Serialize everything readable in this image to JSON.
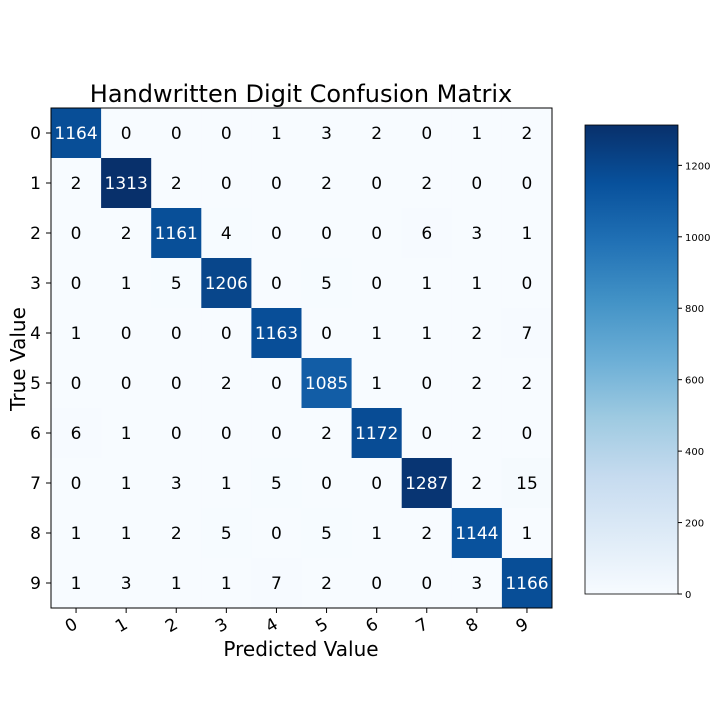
{
  "chart_data": {
    "type": "heatmap",
    "title": "Handwritten Digit Confusion Matrix",
    "xlabel": "Predicted Value",
    "ylabel": "True Value",
    "x_categories": [
      "0",
      "1",
      "2",
      "3",
      "4",
      "5",
      "6",
      "7",
      "8",
      "9"
    ],
    "y_categories": [
      "0",
      "1",
      "2",
      "3",
      "4",
      "5",
      "6",
      "7",
      "8",
      "9"
    ],
    "matrix": [
      [
        1164,
        0,
        0,
        0,
        1,
        3,
        2,
        0,
        1,
        2
      ],
      [
        2,
        1313,
        2,
        0,
        0,
        2,
        0,
        2,
        0,
        0
      ],
      [
        0,
        2,
        1161,
        4,
        0,
        0,
        0,
        6,
        3,
        1
      ],
      [
        0,
        1,
        5,
        1206,
        0,
        5,
        0,
        1,
        1,
        0
      ],
      [
        1,
        0,
        0,
        0,
        1163,
        0,
        1,
        1,
        2,
        7
      ],
      [
        0,
        0,
        0,
        2,
        0,
        1085,
        1,
        0,
        2,
        2
      ],
      [
        6,
        1,
        0,
        0,
        0,
        2,
        1172,
        0,
        2,
        0
      ],
      [
        0,
        1,
        3,
        1,
        5,
        0,
        0,
        1287,
        2,
        15
      ],
      [
        1,
        1,
        2,
        5,
        0,
        5,
        1,
        2,
        1144,
        1
      ],
      [
        1,
        3,
        1,
        1,
        7,
        2,
        0,
        0,
        3,
        1166
      ]
    ],
    "colormap": "Blues",
    "colorbar": {
      "range": [
        0,
        1313
      ],
      "ticks": [
        0,
        200,
        400,
        600,
        800,
        1000,
        1200
      ]
    },
    "grid": false
  }
}
